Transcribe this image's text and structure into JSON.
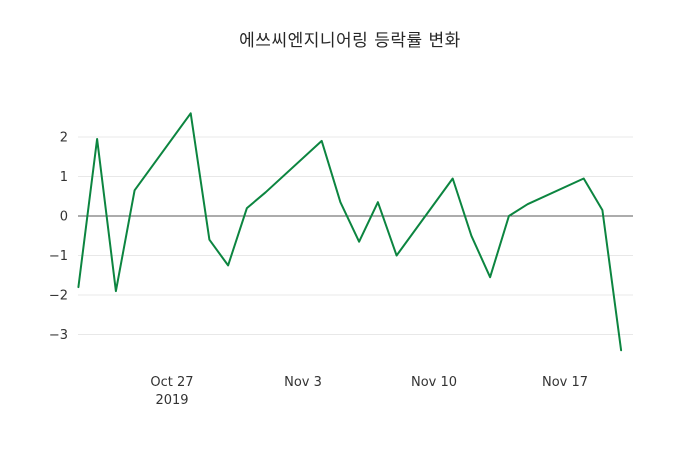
{
  "chart_data": {
    "type": "line",
    "title": "에쓰씨엔지니어링 등락률 변화",
    "xlabel": "",
    "ylabel": "",
    "grid": "horizontal",
    "zero_line": true,
    "legend": "none",
    "ylim": [
      -3.7,
      3.0
    ],
    "y_ticks": [
      -3,
      -2,
      -1,
      0,
      1,
      2
    ],
    "x_ticks": [
      {
        "label": "Oct 27",
        "sublabel": "2019",
        "date": "2019-10-27"
      },
      {
        "label": "Nov 3",
        "date": "2019-11-03"
      },
      {
        "label": "Nov 10",
        "date": "2019-11-10"
      },
      {
        "label": "Nov 17",
        "date": "2019-11-17"
      }
    ],
    "colors": {
      "line": "#0c8540",
      "grid": "#e8e8e8",
      "zero_line": "#5a5a5a",
      "text": "#333333",
      "background": "#ffffff"
    },
    "series": [
      {
        "name": "등락률 (%)",
        "color": "#0c8540",
        "x": [
          "2019-10-22",
          "2019-10-23",
          "2019-10-24",
          "2019-10-25",
          "2019-10-28",
          "2019-10-29",
          "2019-10-30",
          "2019-10-31",
          "2019-11-01",
          "2019-11-04",
          "2019-11-05",
          "2019-11-06",
          "2019-11-07",
          "2019-11-08",
          "2019-11-11",
          "2019-11-12",
          "2019-11-13",
          "2019-11-14",
          "2019-11-15",
          "2019-11-18",
          "2019-11-19",
          "2019-11-20"
        ],
        "y": [
          -1.8,
          1.95,
          -1.9,
          0.65,
          2.6,
          -0.6,
          -1.25,
          0.2,
          0.6,
          1.9,
          0.35,
          -0.65,
          0.35,
          -1.0,
          0.95,
          -0.5,
          -1.55,
          0.0,
          0.3,
          0.95,
          0.15,
          -3.4
        ]
      }
    ]
  }
}
